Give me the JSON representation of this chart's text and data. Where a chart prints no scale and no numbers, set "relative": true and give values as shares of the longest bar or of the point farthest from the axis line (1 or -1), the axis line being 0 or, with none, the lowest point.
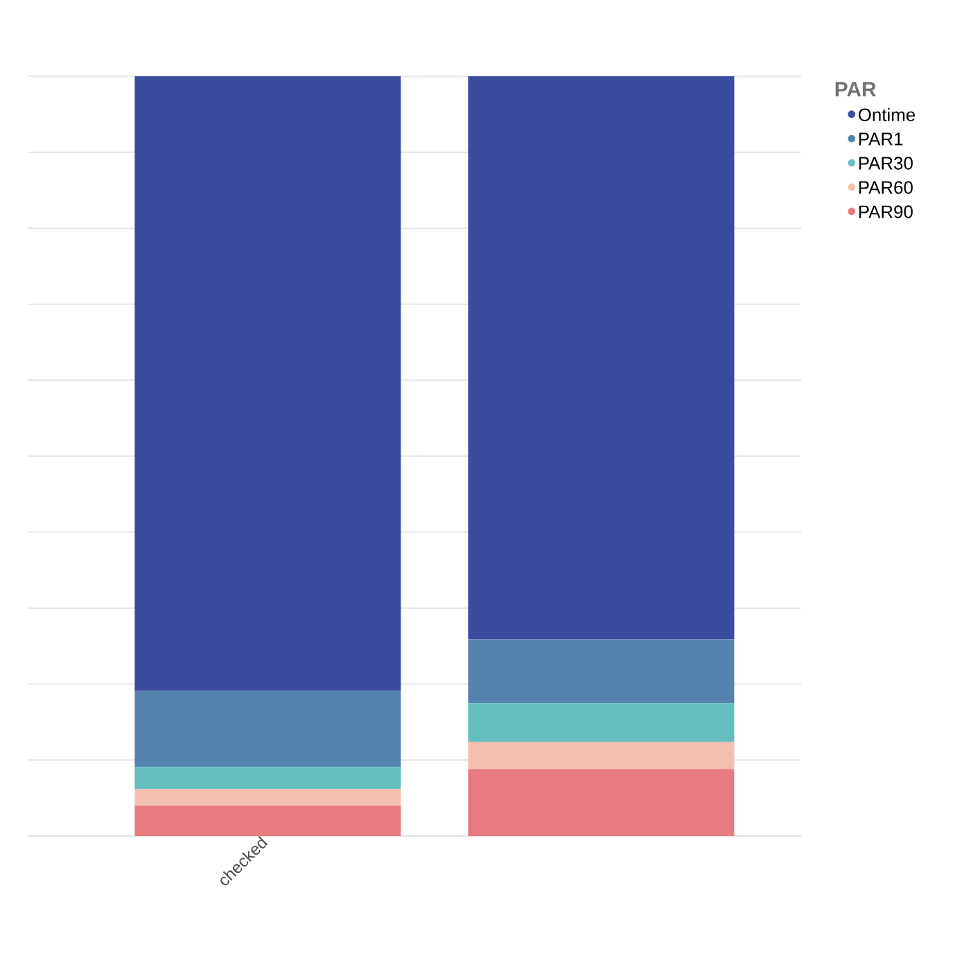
{
  "chart_data": {
    "type": "bar",
    "stacked": true,
    "relative": true,
    "categories": [
      "checked",
      null
    ],
    "legend_title": "PAR",
    "legend": "top right",
    "grid": "y",
    "tick_labels": "x",
    "series": [
      {
        "name": "PAR90",
        "color": "#e67c7f",
        "values": [
          0.04,
          0.088
        ]
      },
      {
        "name": "PAR60",
        "color": "#f4c0b0",
        "values": [
          0.022,
          0.036
        ]
      },
      {
        "name": "PAR30",
        "color": "#66bfbf",
        "values": [
          0.029,
          0.051
        ]
      },
      {
        "name": "PAR1",
        "color": "#5583ad",
        "values": [
          0.1,
          0.084
        ]
      },
      {
        "name": "Ontime",
        "color": "#3a4c9e",
        "values": [
          0.809,
          0.741
        ]
      }
    ]
  }
}
